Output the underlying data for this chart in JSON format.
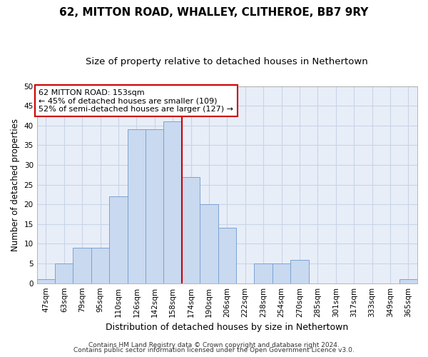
{
  "title1": "62, MITTON ROAD, WHALLEY, CLITHEROE, BB7 9RY",
  "title2": "Size of property relative to detached houses in Nethertown",
  "xlabel": "Distribution of detached houses by size in Nethertown",
  "ylabel": "Number of detached properties",
  "categories": [
    "47sqm",
    "63sqm",
    "79sqm",
    "95sqm",
    "110sqm",
    "126sqm",
    "142sqm",
    "158sqm",
    "174sqm",
    "190sqm",
    "206sqm",
    "222sqm",
    "238sqm",
    "254sqm",
    "270sqm",
    "285sqm",
    "301sqm",
    "317sqm",
    "333sqm",
    "349sqm",
    "365sqm"
  ],
  "values": [
    1,
    5,
    9,
    9,
    22,
    39,
    39,
    41,
    27,
    20,
    14,
    0,
    5,
    5,
    6,
    0,
    0,
    0,
    0,
    0,
    1
  ],
  "bar_color": "#c9d9ef",
  "bar_edge_color": "#7ba3d4",
  "bar_edge_width": 0.7,
  "redline_x": 7.5,
  "annot_line1": "62 MITTON ROAD: 153sqm",
  "annot_line2": "← 45% of detached houses are smaller (109)",
  "annot_line3": "52% of semi-detached houses are larger (127) →",
  "annot_box_color": "#ffffff",
  "annot_box_edge_color": "#cc0000",
  "redline_color": "#cc0000",
  "ylim": [
    0,
    50
  ],
  "yticks": [
    0,
    5,
    10,
    15,
    20,
    25,
    30,
    35,
    40,
    45,
    50
  ],
  "grid_color": "#c8d4e8",
  "background_color": "#e8eef8",
  "footer1": "Contains HM Land Registry data © Crown copyright and database right 2024.",
  "footer2": "Contains public sector information licensed under the Open Government Licence v3.0.",
  "title1_fontsize": 11,
  "title2_fontsize": 9.5,
  "xlabel_fontsize": 9,
  "ylabel_fontsize": 8.5,
  "tick_fontsize": 7.5,
  "annot_fontsize": 8,
  "footer_fontsize": 6.5
}
